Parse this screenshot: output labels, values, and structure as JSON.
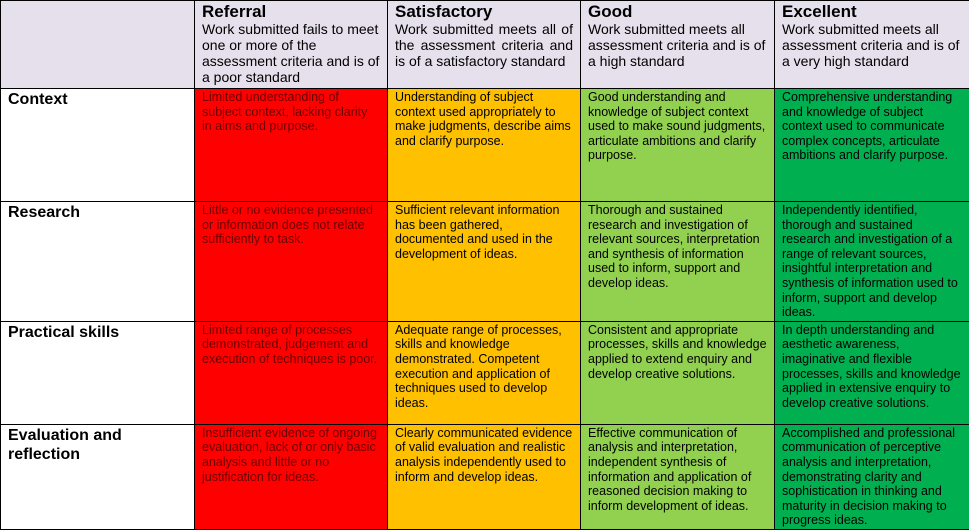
{
  "levels": [
    {
      "name": "Referral",
      "description": "Work submitted fails to meet one or more of the assessment criteria and is of a poor standard",
      "color": "#ff0000"
    },
    {
      "name": "Satisfactory",
      "description": "Work submitted meets all of the assessment criteria and is of a satisfactory standard",
      "color": "#ffc000"
    },
    {
      "name": "Good",
      "description": "Work submitted meets all assessment criteria and is of a high standard",
      "color": "#92d050"
    },
    {
      "name": "Excellent",
      "description": "Work submitted meets all assessment criteria and is of a very high standard",
      "color": "#00b050"
    }
  ],
  "criteria": [
    {
      "name": "Context",
      "cells": [
        "Limited understanding of subject context, lacking clarity in aims and purpose.",
        "Understanding of subject context used appropriately to make judgments, describe aims and clarify purpose.",
        "Good understanding and knowledge of subject context used to make sound judgments, articulate ambitions and clarify purpose.",
        "Comprehensive understanding and knowledge of subject context used to communicate complex concepts, articulate ambitions and clarify purpose."
      ]
    },
    {
      "name": "Research",
      "cells": [
        "Little or no evidence presented or information does not relate sufficiently to task.",
        "Sufficient relevant information has been gathered, documented and used in the development of ideas.",
        "Thorough and sustained research and investigation of relevant sources, interpretation and synthesis of information used to inform, support and develop ideas.",
        "Independently identified, thorough and sustained research and investigation of a range of relevant sources, insightful interpretation and synthesis of information used to inform, support and develop ideas."
      ]
    },
    {
      "name": "Practical skills",
      "cells": [
        "Limited range of processes demonstrated, judgement and execution of techniques is poor.",
        "Adequate range of processes, skills and knowledge demonstrated. Competent execution and application of techniques used to develop ideas.",
        "Consistent and appropriate processes, skills and knowledge applied to extend enquiry and develop creative solutions.",
        "In depth understanding and aesthetic awareness, imaginative and flexible processes, skills and knowledge applied in extensive enquiry to develop creative solutions."
      ]
    },
    {
      "name": "Evaluation and reflection",
      "cells": [
        "Insufficient evidence of ongoing evaluation, lack of or only basic analysis and little or no justification for ideas.",
        "Clearly communicated evidence of valid evaluation and realistic analysis independently used to inform and develop ideas.",
        "Effective communication of analysis and interpretation, independent synthesis of information and application of reasoned decision making to inform development of ideas.",
        "Accomplished and professional communication of perceptive analysis and interpretation, demonstrating clarity and sophistication in thinking and maturity in decision making to progress ideas."
      ]
    }
  ]
}
